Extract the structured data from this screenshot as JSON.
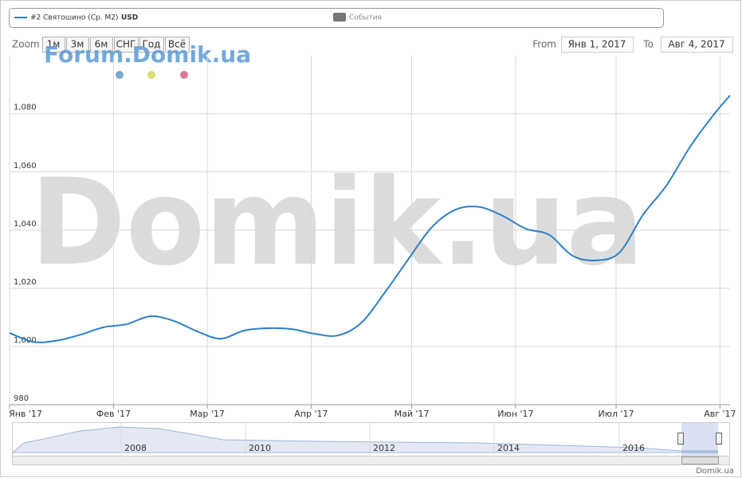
{
  "chart_data": {
    "type": "line",
    "x": [
      "2017-01-01",
      "2017-01-08",
      "2017-01-15",
      "2017-01-22",
      "2017-01-29",
      "2017-02-05",
      "2017-02-12",
      "2017-02-19",
      "2017-02-26",
      "2017-03-05",
      "2017-03-12",
      "2017-03-19",
      "2017-03-26",
      "2017-04-02",
      "2017-04-09",
      "2017-04-16",
      "2017-04-23",
      "2017-04-30",
      "2017-05-07",
      "2017-05-14",
      "2017-05-21",
      "2017-05-28",
      "2017-06-04",
      "2017-06-11",
      "2017-06-18",
      "2017-06-25",
      "2017-07-02",
      "2017-07-09",
      "2017-07-16",
      "2017-07-23",
      "2017-07-30",
      "2017-08-04"
    ],
    "series": [
      {
        "name": "#2 Святошино (Ср. М2)",
        "unit": "USD",
        "color": "#2a7fcc",
        "values": [
          1004.7,
          1001.6,
          1002,
          1004,
          1006.6,
          1007.7,
          1010.4,
          1008.8,
          1005.2,
          1002.7,
          1005.5,
          1006.3,
          1006,
          1004.4,
          1003.8,
          1008.2,
          1018.6,
          1030,
          1041,
          1047,
          1048,
          1045,
          1040.5,
          1038.4,
          1031.2,
          1029.6,
          1032.3,
          1045.2,
          1055.3,
          1068.5,
          1079.5,
          1086.3
        ]
      }
    ],
    "events_label": "События",
    "xlim": [
      "2017-01-01",
      "2017-08-04"
    ],
    "xticks": [
      {
        "value": "2017-01-01",
        "label": "Янв '17"
      },
      {
        "value": "2017-02-01",
        "label": "Фев '17"
      },
      {
        "value": "2017-03-01",
        "label": "Мар '17"
      },
      {
        "value": "2017-04-01",
        "label": "Апр '17"
      },
      {
        "value": "2017-05-01",
        "label": "Май '17"
      },
      {
        "value": "2017-06-01",
        "label": "Июн '17"
      },
      {
        "value": "2017-07-01",
        "label": "Июл '17"
      },
      {
        "value": "2017-08-01",
        "label": "Авг '17"
      }
    ],
    "ylim": [
      980,
      1098
    ],
    "yticks": [
      980,
      {
        "value": 1000,
        "label": "1,000"
      },
      {
        "value": 1020,
        "label": "1,020"
      },
      {
        "value": 1040,
        "label": "1,040"
      },
      {
        "value": 1060,
        "label": "1,060"
      },
      {
        "value": 1080,
        "label": "1,080"
      }
    ],
    "grid": true
  },
  "ui": {
    "zoom_label": "Zoom",
    "zoom_buttons": [
      "1м",
      "3м",
      "6м",
      "СНГ",
      "Год",
      "Всё"
    ],
    "from_label": "From",
    "from": "Янв 1, 2017",
    "to_label": "To",
    "to": "Авг 4, 2017",
    "watermark_small": "Forum.Domik.ua",
    "watermark_big": "Domik.ua",
    "navigator_years": [
      "2008",
      "2010",
      "2012",
      "2014",
      "2016"
    ],
    "credit": "Domik.ua"
  }
}
